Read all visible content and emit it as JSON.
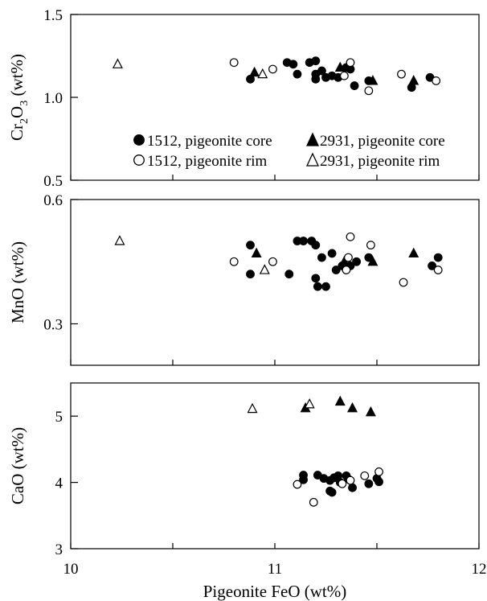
{
  "chart_data": [
    {
      "type": "scatter",
      "ylabel": "Cr2O3 (wt%)",
      "ylabel_parts": {
        "pre": "Cr",
        "sub1": "2",
        "mid": "O",
        "sub2": "3",
        "post": " (wt%)"
      },
      "ylim": [
        0.5,
        1.5
      ],
      "yticks": [
        0.5,
        1.0,
        1.5
      ],
      "ytick_labels": [
        "0.5",
        "1.0",
        "1.5"
      ],
      "legend_position": "lower-right",
      "series": [
        {
          "name": "1512, pigeonite core",
          "marker": "circle-filled",
          "points": [
            [
              10.88,
              1.11
            ],
            [
              11.06,
              1.21
            ],
            [
              11.09,
              1.2
            ],
            [
              11.11,
              1.14
            ],
            [
              11.17,
              1.21
            ],
            [
              11.2,
              1.22
            ],
            [
              11.2,
              1.14
            ],
            [
              11.2,
              1.11
            ],
            [
              11.23,
              1.16
            ],
            [
              11.25,
              1.12
            ],
            [
              11.28,
              1.13
            ],
            [
              11.31,
              1.12
            ],
            [
              11.35,
              1.18
            ],
            [
              11.37,
              1.17
            ],
            [
              11.39,
              1.07
            ],
            [
              11.46,
              1.1
            ],
            [
              11.67,
              1.06
            ],
            [
              11.76,
              1.12
            ]
          ]
        },
        {
          "name": "2931, pigeonite core",
          "marker": "triangle-filled",
          "points": [
            [
              10.9,
              1.15
            ],
            [
              11.32,
              1.18
            ],
            [
              11.48,
              1.1
            ],
            [
              11.68,
              1.1
            ]
          ]
        },
        {
          "name": "1512, pigeonite rim",
          "marker": "circle-open",
          "points": [
            [
              10.8,
              1.21
            ],
            [
              10.99,
              1.17
            ],
            [
              11.34,
              1.13
            ],
            [
              11.37,
              1.21
            ],
            [
              11.46,
              1.04
            ],
            [
              11.62,
              1.14
            ],
            [
              11.79,
              1.1
            ]
          ]
        },
        {
          "name": "2931, pigeonite rim",
          "marker": "triangle-open",
          "points": [
            [
              10.23,
              1.2
            ],
            [
              10.94,
              1.14
            ]
          ]
        }
      ]
    },
    {
      "type": "scatter",
      "ylabel": "MnO (wt%)",
      "ylim": [
        0.2,
        0.6
      ],
      "yticks": [
        0.3,
        0.6
      ],
      "ytick_labels": [
        "0.3",
        "0.6"
      ],
      "series": [
        {
          "name": "1512, pigeonite core",
          "marker": "circle-filled",
          "points": [
            [
              10.88,
              0.49
            ],
            [
              10.88,
              0.42
            ],
            [
              11.07,
              0.42
            ],
            [
              11.11,
              0.5
            ],
            [
              11.14,
              0.5
            ],
            [
              11.18,
              0.5
            ],
            [
              11.2,
              0.49
            ],
            [
              11.2,
              0.41
            ],
            [
              11.21,
              0.39
            ],
            [
              11.23,
              0.46
            ],
            [
              11.25,
              0.39
            ],
            [
              11.28,
              0.47
            ],
            [
              11.3,
              0.43
            ],
            [
              11.33,
              0.44
            ],
            [
              11.37,
              0.44
            ],
            [
              11.4,
              0.45
            ],
            [
              11.46,
              0.46
            ],
            [
              11.77,
              0.44
            ],
            [
              11.8,
              0.46
            ]
          ]
        },
        {
          "name": "2931, pigeonite core",
          "marker": "triangle-filled",
          "points": [
            [
              10.91,
              0.47
            ],
            [
              11.34,
              0.45
            ],
            [
              11.48,
              0.45
            ],
            [
              11.68,
              0.47
            ]
          ]
        },
        {
          "name": "1512, pigeonite rim",
          "marker": "circle-open",
          "points": [
            [
              10.8,
              0.45
            ],
            [
              10.99,
              0.45
            ],
            [
              11.35,
              0.43
            ],
            [
              11.36,
              0.46
            ],
            [
              11.37,
              0.51
            ],
            [
              11.47,
              0.49
            ],
            [
              11.63,
              0.4
            ],
            [
              11.8,
              0.43
            ]
          ]
        },
        {
          "name": "2931, pigeonite rim",
          "marker": "triangle-open",
          "points": [
            [
              10.24,
              0.5
            ],
            [
              10.95,
              0.43
            ]
          ]
        }
      ]
    },
    {
      "type": "scatter",
      "ylabel": "CaO (wt%)",
      "xlabel": "Pigeonite FeO (wt%)",
      "ylim": [
        3,
        5.5
      ],
      "yticks": [
        3,
        4,
        5
      ],
      "ytick_labels": [
        "3",
        "4",
        "5"
      ],
      "xlim": [
        10,
        12
      ],
      "xticks": [
        10,
        11,
        12
      ],
      "xtick_labels": [
        "10",
        "11",
        "12"
      ],
      "series": [
        {
          "name": "1512, pigeonite core",
          "marker": "circle-filled",
          "points": [
            [
              11.14,
              4.11
            ],
            [
              11.14,
              4.04
            ],
            [
              11.21,
              4.11
            ],
            [
              11.24,
              4.06
            ],
            [
              11.27,
              4.03
            ],
            [
              11.27,
              3.87
            ],
            [
              11.28,
              3.85
            ],
            [
              11.29,
              4.07
            ],
            [
              11.31,
              4.1
            ],
            [
              11.32,
              4.0
            ],
            [
              11.35,
              4.1
            ],
            [
              11.36,
              4.05
            ],
            [
              11.38,
              3.92
            ],
            [
              11.46,
              3.98
            ],
            [
              11.5,
              4.06
            ],
            [
              11.51,
              4.01
            ]
          ]
        },
        {
          "name": "2931, pigeonite core",
          "marker": "triangle-filled",
          "points": [
            [
              11.15,
              5.12
            ],
            [
              11.32,
              5.22
            ],
            [
              11.38,
              5.12
            ],
            [
              11.47,
              5.06
            ]
          ]
        },
        {
          "name": "1512, pigeonite rim",
          "marker": "circle-open",
          "points": [
            [
              11.11,
              3.97
            ],
            [
              11.19,
              3.7
            ],
            [
              11.33,
              3.98
            ],
            [
              11.37,
              4.03
            ],
            [
              11.44,
              4.1
            ],
            [
              11.51,
              4.16
            ]
          ]
        },
        {
          "name": "2931, pigeonite rim",
          "marker": "triangle-open",
          "points": [
            [
              10.89,
              5.11
            ],
            [
              11.17,
              5.18
            ]
          ]
        }
      ]
    }
  ]
}
